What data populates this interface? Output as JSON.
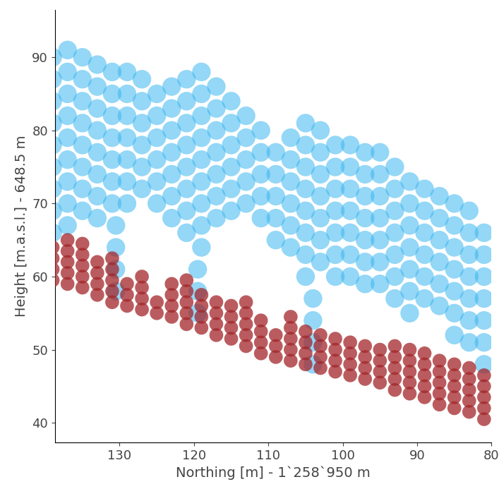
{
  "chart_data": {
    "type": "scatter",
    "x_label": "Northing [m] - 1`258`950 m",
    "y_label": "Height [m.a.s.l.] - 648.5 m",
    "xlim": [
      138.7,
      80
    ],
    "ylim": [
      37.3,
      96.5
    ],
    "xticks": [
      130,
      120,
      110,
      100,
      90,
      80
    ],
    "yticks": [
      40,
      50,
      60,
      70,
      80,
      90
    ],
    "grid": false,
    "series": [
      {
        "color": "#3cb6f0",
        "marker": "o",
        "x": [
          139,
          139,
          139,
          139,
          139,
          139,
          139,
          139,
          139,
          137,
          137,
          137,
          137,
          137,
          137,
          137,
          137,
          137,
          135,
          135,
          135,
          135,
          135,
          135,
          135,
          135,
          133,
          133,
          133,
          133,
          133,
          133,
          133,
          133,
          131,
          131,
          131,
          131,
          131,
          131,
          131,
          129,
          129,
          129,
          129,
          129,
          129,
          129,
          127,
          127,
          127,
          127,
          127,
          127,
          125,
          125,
          125,
          125,
          125,
          125,
          123,
          123,
          123,
          123,
          123,
          123,
          123,
          121,
          121,
          121,
          121,
          121,
          121,
          121,
          121,
          119,
          119,
          119,
          119,
          119,
          119,
          119,
          119,
          119,
          117,
          117,
          117,
          117,
          117,
          117,
          117,
          115,
          115,
          115,
          115,
          115,
          115,
          113,
          113,
          113,
          113,
          113,
          111,
          111,
          111,
          111,
          111,
          109,
          109,
          109,
          109,
          109,
          107,
          107,
          107,
          107,
          107,
          107,
          105,
          105,
          105,
          105,
          105,
          105,
          105,
          105,
          103,
          103,
          103,
          103,
          103,
          103,
          103,
          101,
          101,
          101,
          101,
          101,
          101,
          101,
          99,
          99,
          99,
          99,
          99,
          99,
          99,
          97,
          97,
          97,
          97,
          97,
          97,
          97,
          95,
          95,
          95,
          95,
          95,
          95,
          95,
          93,
          93,
          93,
          93,
          93,
          93,
          93,
          91,
          91,
          91,
          91,
          91,
          91,
          91,
          89,
          89,
          89,
          89,
          89,
          89,
          87,
          87,
          87,
          87,
          87,
          87,
          85,
          85,
          85,
          85,
          85,
          85,
          85,
          83,
          83,
          83,
          83,
          83,
          83,
          83,
          81,
          81,
          81,
          81,
          81,
          81,
          81,
          130.5,
          130.5,
          130.5,
          130.5,
          119.5,
          119.5,
          119.5,
          104,
          104,
          104,
          104
        ],
        "values": [
          90,
          87,
          84,
          81,
          78,
          75,
          72,
          69,
          66,
          91,
          88,
          85,
          82,
          79,
          76,
          73,
          70,
          67,
          90,
          87,
          84,
          81,
          78,
          75,
          72,
          69,
          89,
          86,
          83,
          80,
          77,
          74,
          71,
          68,
          88,
          85,
          82,
          79,
          76,
          73,
          70,
          88,
          85,
          82,
          79,
          76,
          73,
          70,
          87,
          84,
          81,
          78,
          75,
          72,
          85,
          82,
          79,
          76,
          73,
          70,
          86,
          83,
          80,
          77,
          74,
          71,
          68,
          87,
          84,
          81,
          78,
          75,
          72,
          69,
          66,
          88,
          85,
          82,
          79,
          76,
          73,
          70,
          67,
          64,
          86,
          83,
          80,
          77,
          74,
          71,
          68,
          84,
          81,
          78,
          75,
          72,
          69,
          82,
          79,
          76,
          73,
          70,
          80,
          77,
          74,
          71,
          68,
          77,
          74,
          71,
          68,
          65,
          79,
          76,
          73,
          70,
          67,
          64,
          81,
          78,
          75,
          72,
          69,
          66,
          63,
          60,
          80,
          77,
          74,
          71,
          68,
          65,
          62,
          78,
          75,
          72,
          69,
          66,
          63,
          60,
          78,
          75,
          72,
          69,
          66,
          63,
          60,
          77,
          74,
          71,
          68,
          65,
          62,
          59,
          77,
          74,
          71,
          68,
          65,
          62,
          59,
          75,
          72,
          69,
          66,
          63,
          60,
          57,
          73,
          70,
          67,
          64,
          61,
          58,
          55,
          72,
          69,
          66,
          63,
          60,
          57,
          71,
          68,
          65,
          62,
          59,
          56,
          70,
          67,
          64,
          61,
          58,
          55,
          52,
          69,
          66,
          63,
          60,
          57,
          54,
          51,
          66,
          63,
          60,
          57,
          54,
          51,
          48,
          58,
          61,
          64,
          67,
          55,
          58,
          61,
          48,
          51,
          54,
          57
        ]
      },
      {
        "color": "#a3262a",
        "marker": "o",
        "x": [
          139,
          139,
          139,
          139,
          137,
          137,
          137,
          137,
          137,
          135,
          135,
          135,
          135,
          135,
          133,
          133,
          133,
          133,
          131,
          131,
          131,
          131,
          131,
          129,
          129,
          129,
          127,
          127,
          127,
          127,
          125,
          125,
          123,
          123,
          123,
          123,
          121,
          121,
          121,
          121,
          121,
          119,
          119,
          119,
          119,
          117,
          117,
          117,
          117,
          115,
          115,
          115,
          115,
          113,
          113,
          113,
          113,
          113,
          111,
          111,
          111,
          111,
          109,
          109,
          109,
          107,
          107,
          107,
          107,
          107,
          105,
          105,
          105,
          105,
          103,
          103,
          103,
          103,
          101,
          101,
          101,
          101,
          99,
          99,
          99,
          99,
          97,
          97,
          97,
          97,
          95,
          95,
          95,
          95,
          93,
          93,
          93,
          93,
          93,
          91,
          91,
          91,
          91,
          91,
          89,
          89,
          89,
          89,
          89,
          87,
          87,
          87,
          87,
          87,
          85,
          85,
          85,
          85,
          85,
          83,
          83,
          83,
          83,
          83,
          81,
          81,
          81,
          81,
          81
        ],
        "values": [
          59.5,
          61,
          62.5,
          64,
          59,
          60.5,
          62,
          63.5,
          65,
          58.5,
          60,
          61.5,
          63,
          64.5,
          57.5,
          59,
          60.5,
          62,
          56.5,
          58,
          59.5,
          61,
          62.5,
          56,
          57.5,
          59,
          55.5,
          57,
          58.5,
          60,
          55,
          56.5,
          54.5,
          56,
          57.5,
          59,
          53.5,
          55,
          56.5,
          58,
          59.5,
          53,
          54.5,
          56,
          57.5,
          52,
          53.5,
          55,
          56.5,
          51.5,
          53,
          54.5,
          56,
          50.5,
          52,
          53.5,
          55,
          56.5,
          49.5,
          51,
          52.5,
          54,
          49,
          50.5,
          52,
          48.5,
          50,
          51.5,
          53,
          54.5,
          48,
          49.5,
          51,
          52.5,
          47.5,
          49,
          50.5,
          52,
          47,
          48.5,
          50,
          51.5,
          46.5,
          48,
          49.5,
          51,
          46,
          47.5,
          49,
          50.5,
          45.5,
          47,
          48.5,
          50,
          44.5,
          46,
          47.5,
          49,
          50.5,
          44,
          45.5,
          47,
          48.5,
          50,
          43.5,
          45,
          46.5,
          48,
          49.5,
          42.5,
          44,
          45.5,
          47,
          48.5,
          42,
          43.5,
          45,
          46.5,
          48,
          41.5,
          43,
          44.5,
          46,
          47.5,
          40.5,
          42,
          43.5,
          45,
          46.5
        ]
      }
    ]
  }
}
